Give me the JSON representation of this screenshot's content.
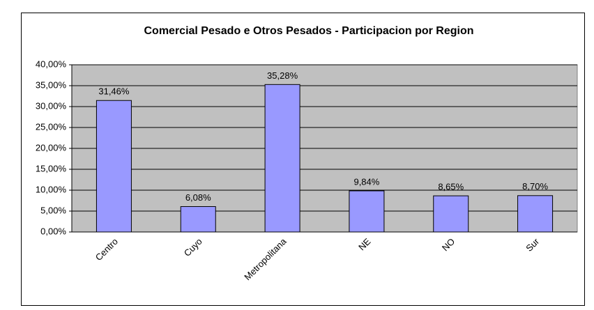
{
  "chart_data": {
    "type": "bar",
    "title": "Comercial Pesado e Otros Pesados - Participacion por Region",
    "categories": [
      "Centro",
      "Cuyo",
      "Metropolitana",
      "NE",
      "NO",
      "Sur"
    ],
    "values": [
      31.46,
      6.08,
      35.28,
      9.84,
      8.65,
      8.7
    ],
    "value_labels": [
      "31,46%",
      "6,08%",
      "35,28%",
      "9,84%",
      "8,65%",
      "8,70%"
    ],
    "color": "#9999ff",
    "ylim": [
      0,
      40
    ],
    "yticks": [
      {
        "value": 0,
        "label": "0,00%"
      },
      {
        "value": 5,
        "label": "5,00%"
      },
      {
        "value": 10,
        "label": "10,00%"
      },
      {
        "value": 15,
        "label": "15,00%"
      },
      {
        "value": 20,
        "label": "20,00%"
      },
      {
        "value": 25,
        "label": "25,00%"
      },
      {
        "value": 30,
        "label": "30,00%"
      },
      {
        "value": 35,
        "label": "35,00%"
      },
      {
        "value": 40,
        "label": "40,00%"
      }
    ],
    "grid": true
  }
}
